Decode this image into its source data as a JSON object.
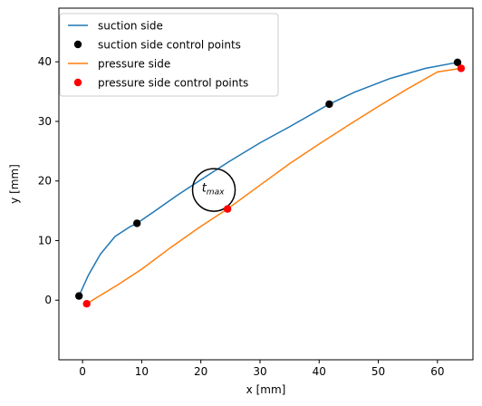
{
  "chart_data": {
    "type": "line",
    "xlabel": "x [mm]",
    "ylabel": "y [mm]",
    "xlim": [
      -4,
      66
    ],
    "ylim": [
      -10,
      49
    ],
    "xticks": [
      0,
      10,
      20,
      30,
      40,
      50,
      60
    ],
    "yticks": [
      0,
      10,
      20,
      30,
      40
    ],
    "legend_position": "top-left",
    "annotation": {
      "base": "t",
      "sub": "max"
    },
    "thickness_circle": {
      "x": 22.2,
      "y": 18.5,
      "r": 3.6
    },
    "colors": {
      "suction": "#1f77b4",
      "pressure": "#ff7f0e",
      "suction_points": "#000000",
      "pressure_points": "#ff0000",
      "circle": "#000000"
    },
    "series": [
      {
        "name": "suction side",
        "kind": "line",
        "x": [
          -0.6,
          1.0,
          3.0,
          5.5,
          8.0,
          9.2,
          12.0,
          16.0,
          20.0,
          25.0,
          30.0,
          35.0,
          41.7,
          46.0,
          52.0,
          58.0,
          63.4
        ],
        "y": [
          0.7,
          4.2,
          7.7,
          10.7,
          12.3,
          12.9,
          14.8,
          17.6,
          20.2,
          23.4,
          26.4,
          29.1,
          32.9,
          34.9,
          37.2,
          38.9,
          39.9
        ]
      },
      {
        "name": "suction side control points",
        "kind": "points",
        "x": [
          -0.6,
          9.2,
          41.7,
          63.4
        ],
        "y": [
          0.7,
          12.9,
          32.9,
          39.9
        ]
      },
      {
        "name": "pressure side",
        "kind": "line",
        "x": [
          0.7,
          3.0,
          6.0,
          10.0,
          15.0,
          20.0,
          24.5,
          30.0,
          35.0,
          40.0,
          45.0,
          50.0,
          55.0,
          60.0,
          64.0
        ],
        "y": [
          -0.6,
          0.8,
          2.6,
          5.2,
          8.9,
          12.4,
          15.3,
          19.3,
          22.9,
          26.2,
          29.4,
          32.5,
          35.5,
          38.3,
          38.9
        ]
      },
      {
        "name": "pressure side control points",
        "kind": "points",
        "x": [
          0.7,
          24.5,
          64.0
        ],
        "y": [
          -0.6,
          15.3,
          38.9
        ]
      }
    ]
  }
}
